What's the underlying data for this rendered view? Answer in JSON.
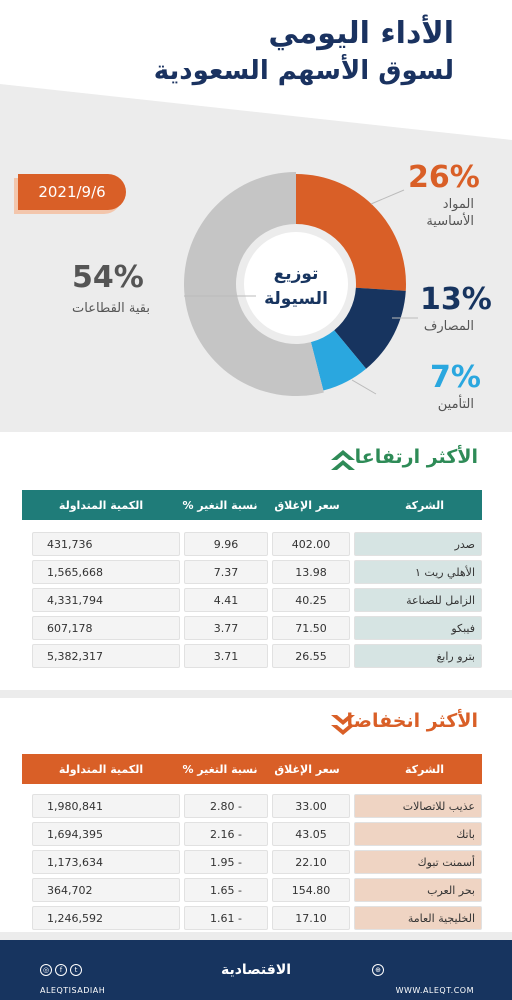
{
  "header": {
    "title_line1": "الأداء اليومي",
    "title_line2": "لسوق الأسهم السعودية",
    "date": "2021/9/6"
  },
  "donut": {
    "center_line1": "توزيع",
    "center_line2": "السيولة",
    "segments": [
      {
        "percent": "26%",
        "label_line1": "المواد",
        "label_line2": "الأساسية",
        "value": 26,
        "color": "#d95f27"
      },
      {
        "percent": "13%",
        "label_line1": "المصارف",
        "label_line2": "",
        "value": 13,
        "color": "#17345f"
      },
      {
        "percent": "7%",
        "label_line1": "التأمين",
        "label_line2": "",
        "value": 7,
        "color": "#2aa7df"
      },
      {
        "percent": "54%",
        "label_line1": "بقية القطاعات",
        "label_line2": "",
        "value": 54,
        "color": "#c5c5c5"
      }
    ]
  },
  "gainers": {
    "title": "الأكثر ارتفاعا",
    "headers": {
      "company": "الشركة",
      "close": "سعر الإغلاق",
      "change": "نسبة التغير %",
      "volume": "الكمية المتداولة"
    },
    "rows": [
      {
        "company": "صدر",
        "close": "402.00",
        "change": "9.96",
        "volume": "431,736"
      },
      {
        "company": "الأهلي ريت ١",
        "close": "13.98",
        "change": "7.37",
        "volume": "1,565,668"
      },
      {
        "company": "الزامل للصناعة",
        "close": "40.25",
        "change": "4.41",
        "volume": "4,331,794"
      },
      {
        "company": "فيبكو",
        "close": "71.50",
        "change": "3.77",
        "volume": "607,178"
      },
      {
        "company": "بترو رابغ",
        "close": "26.55",
        "change": "3.71",
        "volume": "5,382,317"
      }
    ]
  },
  "losers": {
    "title": "الأكثر انخفاضا",
    "headers": {
      "company": "الشركة",
      "close": "سعر الإغلاق",
      "change": "نسبة التغير %",
      "volume": "الكمية المتداولة"
    },
    "rows": [
      {
        "company": "عذيب للاتصالات",
        "close": "33.00",
        "change": "2.80 -",
        "volume": "1,980,841"
      },
      {
        "company": "باتك",
        "close": "43.05",
        "change": "2.16 -",
        "volume": "1,694,395"
      },
      {
        "company": "أسمنت تبوك",
        "close": "22.10",
        "change": "1.95 -",
        "volume": "1,173,634"
      },
      {
        "company": "بحر العرب",
        "close": "154.80",
        "change": "1.65 -",
        "volume": "364,702"
      },
      {
        "company": "الخليجية العامة",
        "close": "17.10",
        "change": "1.61 -",
        "volume": "1,246,592"
      }
    ]
  },
  "footer": {
    "brand": "الاقتصادية",
    "handle": "ALEQTISADIAH",
    "url": "WWW.ALEQT.COM"
  },
  "colors": {
    "accent": "#d95f27",
    "navy": "#17345f",
    "teal": "#1f7c79",
    "green": "#2e8b57",
    "cyan": "#2aa7df",
    "grey": "#c5c5c5",
    "loser_row": "#efd4c3",
    "gainer_row": "#d6e4e3"
  }
}
